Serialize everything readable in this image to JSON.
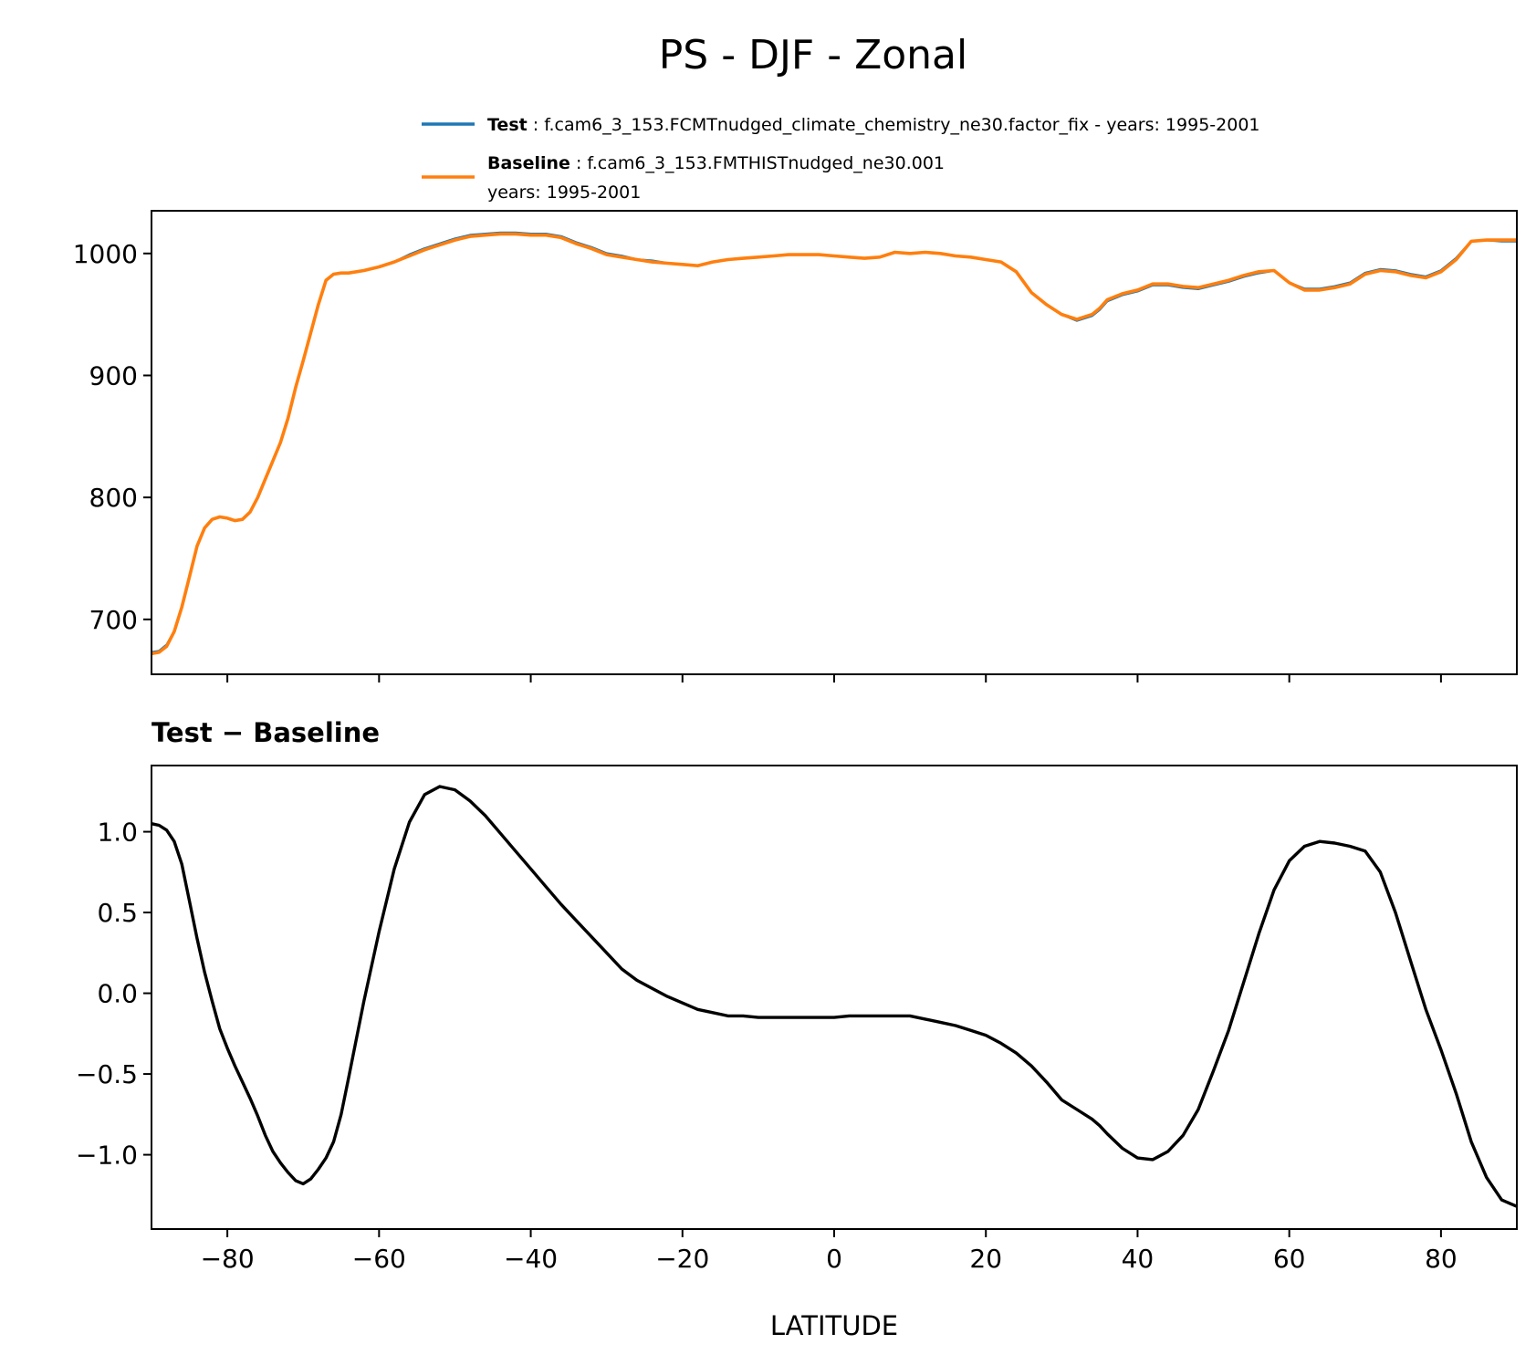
{
  "chart_data": [
    {
      "type": "line",
      "title": "PS - DJF - Zonal",
      "xlabel": "",
      "ylabel": "",
      "xlim": [
        -90,
        90
      ],
      "ylim": [
        655,
        1035
      ],
      "yticks": [
        700,
        800,
        900,
        1000
      ],
      "yticklabels": [
        "700",
        "800",
        "900",
        "1000"
      ],
      "xticks": [
        -80,
        -60,
        -40,
        -20,
        0,
        20,
        40,
        60,
        80
      ],
      "legend": {
        "placement": "top-right",
        "entries": [
          {
            "name": "Test",
            "label": "f.cam6_3_153.FCMTnudged_climate_chemistry_ne30.factor_fix - years: 1995-2001",
            "color": "#1f77b4"
          },
          {
            "name": "Baseline",
            "label": "f.cam6_3_153.FMTHISTnudged_ne30.001",
            "label2": "years: 1995-2001",
            "color": "#ff7f0e"
          }
        ]
      },
      "x": [
        -90,
        -89,
        -88,
        -87,
        -86,
        -85,
        -84,
        -83,
        -82,
        -81,
        -80,
        -79,
        -78,
        -77,
        -76,
        -75,
        -74,
        -73,
        -72,
        -71,
        -70,
        -69,
        -68,
        -67,
        -66,
        -65,
        -64,
        -62,
        -60,
        -58,
        -56,
        -54,
        -52,
        -50,
        -48,
        -46,
        -44,
        -42,
        -40,
        -38,
        -36,
        -34,
        -32,
        -30,
        -28,
        -26,
        -24,
        -22,
        -20,
        -18,
        -16,
        -14,
        -12,
        -10,
        -8,
        -6,
        -4,
        -2,
        0,
        2,
        4,
        6,
        8,
        10,
        12,
        14,
        16,
        18,
        20,
        22,
        24,
        26,
        28,
        30,
        32,
        34,
        35,
        36,
        38,
        40,
        42,
        44,
        46,
        48,
        50,
        52,
        54,
        56,
        58,
        60,
        62,
        64,
        66,
        68,
        70,
        72,
        74,
        76,
        78,
        80,
        82,
        84,
        86,
        88,
        90
      ],
      "series": [
        {
          "name": "Baseline",
          "color": "#ff7f0e",
          "values": [
            672,
            673,
            678,
            690,
            710,
            735,
            760,
            775,
            782,
            784,
            783,
            781,
            782,
            788,
            800,
            815,
            830,
            845,
            865,
            890,
            912,
            935,
            958,
            978,
            983,
            984,
            984,
            986,
            989,
            993,
            998,
            1003,
            1007,
            1011,
            1014,
            1015,
            1016,
            1016,
            1015,
            1015,
            1013,
            1008,
            1004,
            999,
            997,
            995,
            993,
            992,
            991,
            990,
            993,
            995,
            996,
            997,
            998,
            999,
            999,
            999,
            998,
            997,
            996,
            997,
            1001,
            1000,
            1001,
            1000,
            998,
            997,
            995,
            993,
            985,
            968,
            958,
            950,
            946,
            950,
            955,
            962,
            967,
            970,
            975,
            975,
            973,
            972,
            975,
            978,
            982,
            985,
            986,
            976,
            970,
            970,
            972,
            975,
            983,
            986,
            985,
            982,
            980,
            985,
            995,
            1010,
            1011,
            1011,
            1011
          ]
        },
        {
          "name": "Test",
          "color": "#1f77b4",
          "values": [
            673,
            674,
            679,
            690,
            710,
            735,
            760,
            775,
            782,
            784,
            783,
            781,
            782,
            788,
            800,
            815,
            830,
            845,
            865,
            890,
            912,
            935,
            958,
            978,
            983,
            984,
            984,
            986,
            989,
            993,
            999,
            1004,
            1008,
            1012,
            1015,
            1016,
            1017,
            1017,
            1016,
            1016,
            1014,
            1009,
            1005,
            1000,
            998,
            995,
            994,
            992,
            991,
            990,
            993,
            995,
            996,
            997,
            998,
            999,
            999,
            999,
            998,
            997,
            996,
            997,
            1001,
            1000,
            1001,
            1000,
            998,
            997,
            995,
            993,
            985,
            968,
            958,
            950,
            945,
            949,
            954,
            961,
            966,
            969,
            974,
            974,
            972,
            971,
            974,
            977,
            981,
            984,
            986,
            976,
            971,
            971,
            973,
            976,
            984,
            987,
            986,
            983,
            981,
            986,
            996,
            1010,
            1011,
            1010,
            1010
          ]
        }
      ]
    },
    {
      "type": "line",
      "title": "Test − Baseline",
      "xlabel": "LATITUDE",
      "ylabel": "",
      "xlim": [
        -90,
        90
      ],
      "ylim": [
        -1.46,
        1.41
      ],
      "yticks": [
        -1.0,
        -0.5,
        0.0,
        0.5,
        1.0
      ],
      "yticklabels": [
        "−1.0",
        "−0.5",
        "0.0",
        "0.5",
        "1.0"
      ],
      "xticks": [
        -80,
        -60,
        -40,
        -20,
        0,
        20,
        40,
        60,
        80
      ],
      "xticklabels": [
        "−80",
        "−60",
        "−40",
        "−20",
        "0",
        "20",
        "40",
        "60",
        "80"
      ],
      "x": [
        -90,
        -89,
        -88,
        -87,
        -86,
        -85,
        -84,
        -83,
        -82,
        -81,
        -80,
        -79,
        -78,
        -77,
        -76,
        -75,
        -74,
        -73,
        -72,
        -71,
        -70,
        -69,
        -68,
        -67,
        -66,
        -65,
        -64,
        -62,
        -60,
        -58,
        -56,
        -54,
        -52,
        -50,
        -48,
        -46,
        -44,
        -42,
        -40,
        -38,
        -36,
        -34,
        -32,
        -30,
        -28,
        -26,
        -24,
        -22,
        -20,
        -18,
        -16,
        -14,
        -12,
        -10,
        -8,
        -6,
        -4,
        -2,
        0,
        2,
        4,
        6,
        8,
        10,
        12,
        14,
        16,
        18,
        20,
        22,
        24,
        26,
        28,
        30,
        32,
        34,
        35,
        36,
        38,
        40,
        42,
        44,
        46,
        48,
        50,
        52,
        54,
        56,
        58,
        60,
        62,
        64,
        66,
        68,
        70,
        72,
        74,
        76,
        78,
        80,
        82,
        84,
        86,
        88,
        90
      ],
      "series": [
        {
          "name": "Test − Baseline",
          "color": "#000000",
          "values": [
            1.05,
            1.04,
            1.01,
            0.94,
            0.8,
            0.57,
            0.34,
            0.13,
            -0.05,
            -0.22,
            -0.34,
            -0.45,
            -0.55,
            -0.65,
            -0.76,
            -0.88,
            -0.98,
            -1.05,
            -1.11,
            -1.16,
            -1.18,
            -1.15,
            -1.09,
            -1.02,
            -0.92,
            -0.75,
            -0.52,
            -0.05,
            0.38,
            0.77,
            1.06,
            1.23,
            1.28,
            1.26,
            1.19,
            1.1,
            0.99,
            0.88,
            0.77,
            0.66,
            0.55,
            0.45,
            0.35,
            0.25,
            0.15,
            0.08,
            0.03,
            -0.02,
            -0.06,
            -0.1,
            -0.12,
            -0.14,
            -0.14,
            -0.15,
            -0.15,
            -0.15,
            -0.15,
            -0.15,
            -0.15,
            -0.14,
            -0.14,
            -0.14,
            -0.14,
            -0.14,
            -0.16,
            -0.18,
            -0.2,
            -0.23,
            -0.26,
            -0.31,
            -0.37,
            -0.45,
            -0.55,
            -0.66,
            -0.72,
            -0.78,
            -0.82,
            -0.87,
            -0.96,
            -1.02,
            -1.03,
            -0.98,
            -0.88,
            -0.72,
            -0.48,
            -0.23,
            0.07,
            0.37,
            0.64,
            0.82,
            0.91,
            0.94,
            0.93,
            0.91,
            0.88,
            0.75,
            0.5,
            0.2,
            -0.1,
            -0.35,
            -0.62,
            -0.92,
            -1.14,
            -1.28,
            -1.32
          ]
        }
      ]
    }
  ]
}
